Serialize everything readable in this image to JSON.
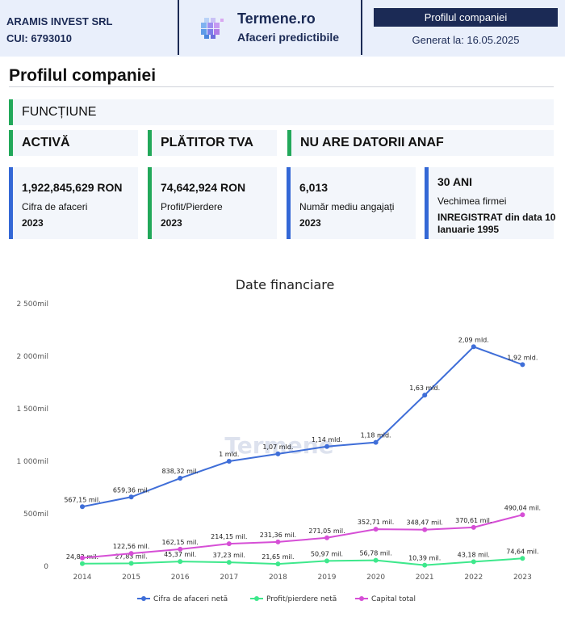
{
  "header": {
    "company_name": "ARAMIS INVEST SRL",
    "cui": "CUI: 6793010",
    "brand_name": "Termene.ro",
    "brand_tagline": "Afaceri predictibile",
    "badge": "Profilul companiei",
    "generated": "Generat la: 16.05.2025"
  },
  "page_title": "Profilul companiei",
  "function_label": "FUNCȚIUNE",
  "statuses": [
    "ACTIVĂ",
    "PLĂTITOR TVA",
    "NU ARE DATORII ANAF"
  ],
  "cards": [
    {
      "value": "1,922,845,629 RON",
      "label": "Cifra de afaceri",
      "year": "2023"
    },
    {
      "value": "74,642,924 RON",
      "label": "Profit/Pierdere",
      "year": "2023"
    },
    {
      "value": "6,013",
      "label": "Număr mediu angajați",
      "year": "2023"
    },
    {
      "value": "30 ANI",
      "label": "Vechimea firmei",
      "year": "INREGISTRAT din data 10 Ianuarie 1995"
    }
  ],
  "colors": {
    "navy": "#1b2a55",
    "green": "#22a85a",
    "blue": "#3468d6"
  },
  "chart_data": {
    "type": "line",
    "title": "Date financiare",
    "watermark": "Termene",
    "x": [
      "2014",
      "2015",
      "2016",
      "2017",
      "2018",
      "2019",
      "2020",
      "2021",
      "2022",
      "2023"
    ],
    "ylim": [
      0,
      2500
    ],
    "yticks": [
      0,
      500,
      1000,
      1500,
      2000,
      2500
    ],
    "ytick_labels": [
      "0",
      "500mil",
      "1 000mil",
      "1 500mil",
      "2 000mil",
      "2 500mil"
    ],
    "legend_position": "bottom",
    "grid": false,
    "series": [
      {
        "name": "Cifra de afaceri netă",
        "color": "#3f6ed8",
        "values": [
          567.15,
          659.36,
          838.32,
          1000,
          1070,
          1140,
          1180,
          1630,
          2090,
          1920
        ],
        "labels": [
          "567,15 mil.",
          "659,36 mil.",
          "838,32 mil.",
          "1 mld.",
          "1,07 mld.",
          "1,14 mld.",
          "1,18 mld.",
          "1,63 mld.",
          "2,09 mld.",
          "1,92 mld."
        ]
      },
      {
        "name": "Profit/pierdere netă",
        "color": "#3ee88c",
        "values": [
          24.82,
          27.83,
          45.37,
          37.23,
          21.65,
          50.97,
          56.78,
          10.39,
          43.18,
          74.64
        ],
        "labels": [
          "24,82 mil.",
          "27,83 mil.",
          "45,37 mil.",
          "37,23 mil.",
          "21,65 mil.",
          "50,97 mil.",
          "56,78 mil.",
          "10,39 mil.",
          "43,18 mil.",
          "74,64 mil."
        ]
      },
      {
        "name": "Capital total",
        "color": "#d64fd6",
        "values": [
          80,
          122.56,
          162.15,
          214.15,
          231.36,
          271.05,
          352.71,
          348.47,
          370.61,
          490.04
        ],
        "labels": [
          "",
          "122,56 mil.",
          "162,15 mil.",
          "214,15 mil.",
          "231,36 mil.",
          "271,05 mil.",
          "352,71 mil.",
          "348,47 mil.",
          "370,61 mil.",
          "490,04 mil."
        ]
      }
    ]
  }
}
